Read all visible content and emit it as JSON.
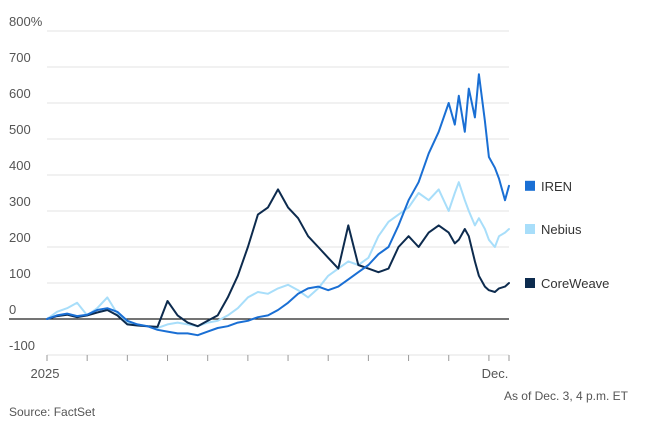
{
  "chart_data": {
    "type": "line",
    "title": "",
    "xlabel": "",
    "ylabel": "",
    "y_unit": "%",
    "ylim": [
      -100,
      800
    ],
    "yticks": [
      -100,
      0,
      100,
      200,
      300,
      400,
      500,
      600,
      700,
      800
    ],
    "ytick_labels": [
      "-100",
      "0",
      "100",
      "200",
      "300",
      "400",
      "500",
      "600",
      "700",
      "800%"
    ],
    "x_unit": "trading day index (2025)",
    "xlim": [
      0,
      230
    ],
    "xtick_positions": [
      0,
      20,
      40,
      60,
      80,
      100,
      120,
      140,
      160,
      180,
      200,
      220,
      230
    ],
    "xtick_labels": [
      {
        "x": 0,
        "text": "2025"
      },
      {
        "x": 228,
        "text": "Dec."
      }
    ],
    "grid": true,
    "legend_position": "right",
    "series": [
      {
        "name": "IREN",
        "color": "#1a6fd4",
        "x": [
          0,
          5,
          10,
          15,
          20,
          25,
          30,
          35,
          40,
          45,
          50,
          55,
          60,
          65,
          70,
          75,
          80,
          85,
          90,
          95,
          100,
          105,
          110,
          115,
          120,
          125,
          130,
          135,
          140,
          145,
          150,
          155,
          160,
          165,
          170,
          175,
          180,
          185,
          190,
          195,
          200,
          203,
          205,
          208,
          210,
          213,
          215,
          218,
          220,
          223,
          225,
          228,
          230
        ],
        "y": [
          0,
          10,
          15,
          8,
          12,
          25,
          30,
          20,
          -5,
          -15,
          -20,
          -30,
          -35,
          -40,
          -40,
          -45,
          -35,
          -25,
          -20,
          -10,
          -5,
          5,
          10,
          25,
          45,
          70,
          85,
          90,
          80,
          90,
          110,
          130,
          150,
          180,
          200,
          260,
          330,
          380,
          460,
          520,
          600,
          540,
          620,
          520,
          640,
          560,
          680,
          550,
          450,
          420,
          390,
          330,
          370
        ]
      },
      {
        "name": "Nebius",
        "color": "#a8defa",
        "x": [
          0,
          5,
          10,
          15,
          20,
          25,
          30,
          35,
          40,
          45,
          50,
          55,
          60,
          65,
          70,
          75,
          80,
          85,
          90,
          95,
          100,
          105,
          110,
          115,
          120,
          125,
          130,
          135,
          140,
          145,
          150,
          155,
          160,
          165,
          170,
          175,
          180,
          185,
          190,
          195,
          200,
          203,
          205,
          208,
          210,
          213,
          215,
          218,
          220,
          223,
          225,
          228,
          230
        ],
        "y": [
          0,
          20,
          30,
          45,
          10,
          30,
          60,
          15,
          -10,
          -15,
          -20,
          -25,
          -15,
          -10,
          -15,
          -20,
          -10,
          -5,
          10,
          30,
          60,
          75,
          70,
          85,
          95,
          80,
          60,
          85,
          120,
          140,
          160,
          150,
          170,
          230,
          270,
          290,
          310,
          350,
          330,
          360,
          300,
          350,
          380,
          330,
          300,
          260,
          280,
          250,
          220,
          200,
          230,
          240,
          250
        ]
      },
      {
        "name": "CoreWeave",
        "color": "#0d2b4e",
        "x": [
          0,
          5,
          10,
          15,
          20,
          25,
          30,
          35,
          40,
          45,
          50,
          55,
          60,
          65,
          70,
          75,
          80,
          85,
          90,
          95,
          100,
          105,
          110,
          115,
          120,
          125,
          130,
          135,
          140,
          145,
          150,
          155,
          160,
          165,
          170,
          175,
          180,
          185,
          190,
          195,
          200,
          203,
          205,
          208,
          210,
          213,
          215,
          218,
          220,
          223,
          225,
          228,
          230
        ],
        "y": [
          0,
          8,
          12,
          5,
          10,
          18,
          25,
          10,
          -15,
          -18,
          -20,
          -22,
          50,
          10,
          -10,
          -20,
          -5,
          10,
          60,
          120,
          200,
          290,
          310,
          360,
          310,
          280,
          230,
          200,
          170,
          140,
          260,
          150,
          140,
          130,
          140,
          200,
          230,
          200,
          240,
          260,
          240,
          210,
          220,
          250,
          230,
          160,
          120,
          90,
          80,
          75,
          85,
          90,
          100
        ]
      }
    ]
  },
  "notes": {
    "as_of": "As of Dec. 3, 4 p.m. ET",
    "source": "Source: FactSet"
  }
}
